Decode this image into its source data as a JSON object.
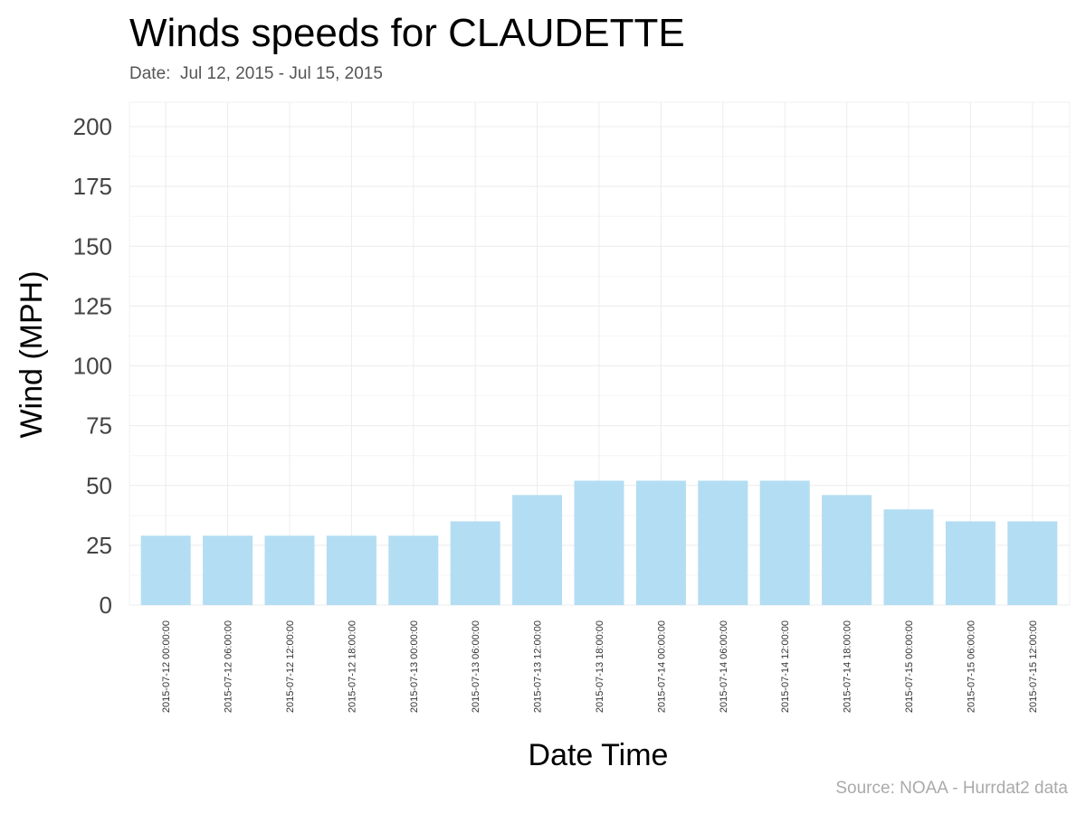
{
  "chart_data": {
    "type": "bar",
    "title": "Winds speeds for CLAUDETTE",
    "subtitle": "Date:  Jul 12, 2015 - Jul 15, 2015",
    "xlabel": "Date Time",
    "ylabel": "Wind (MPH)",
    "caption": "Source: NOAA - Hurrdat2 data",
    "categories": [
      "2015-07-12 00:00:00",
      "2015-07-12 06:00:00",
      "2015-07-12 12:00:00",
      "2015-07-12 18:00:00",
      "2015-07-13 00:00:00",
      "2015-07-13 06:00:00",
      "2015-07-13 12:00:00",
      "2015-07-13 18:00:00",
      "2015-07-14 00:00:00",
      "2015-07-14 06:00:00",
      "2015-07-14 12:00:00",
      "2015-07-14 18:00:00",
      "2015-07-15 00:00:00",
      "2015-07-15 06:00:00",
      "2015-07-15 12:00:00"
    ],
    "values": [
      29,
      29,
      29,
      29,
      29,
      35,
      46,
      52,
      52,
      52,
      52,
      46,
      40,
      35,
      35
    ],
    "ylim": [
      0,
      200
    ],
    "yticks": [
      0,
      25,
      50,
      75,
      100,
      125,
      150,
      175,
      200
    ],
    "grid": true,
    "bar_color": "#b3ddf2",
    "grid_color": "#ececec"
  }
}
